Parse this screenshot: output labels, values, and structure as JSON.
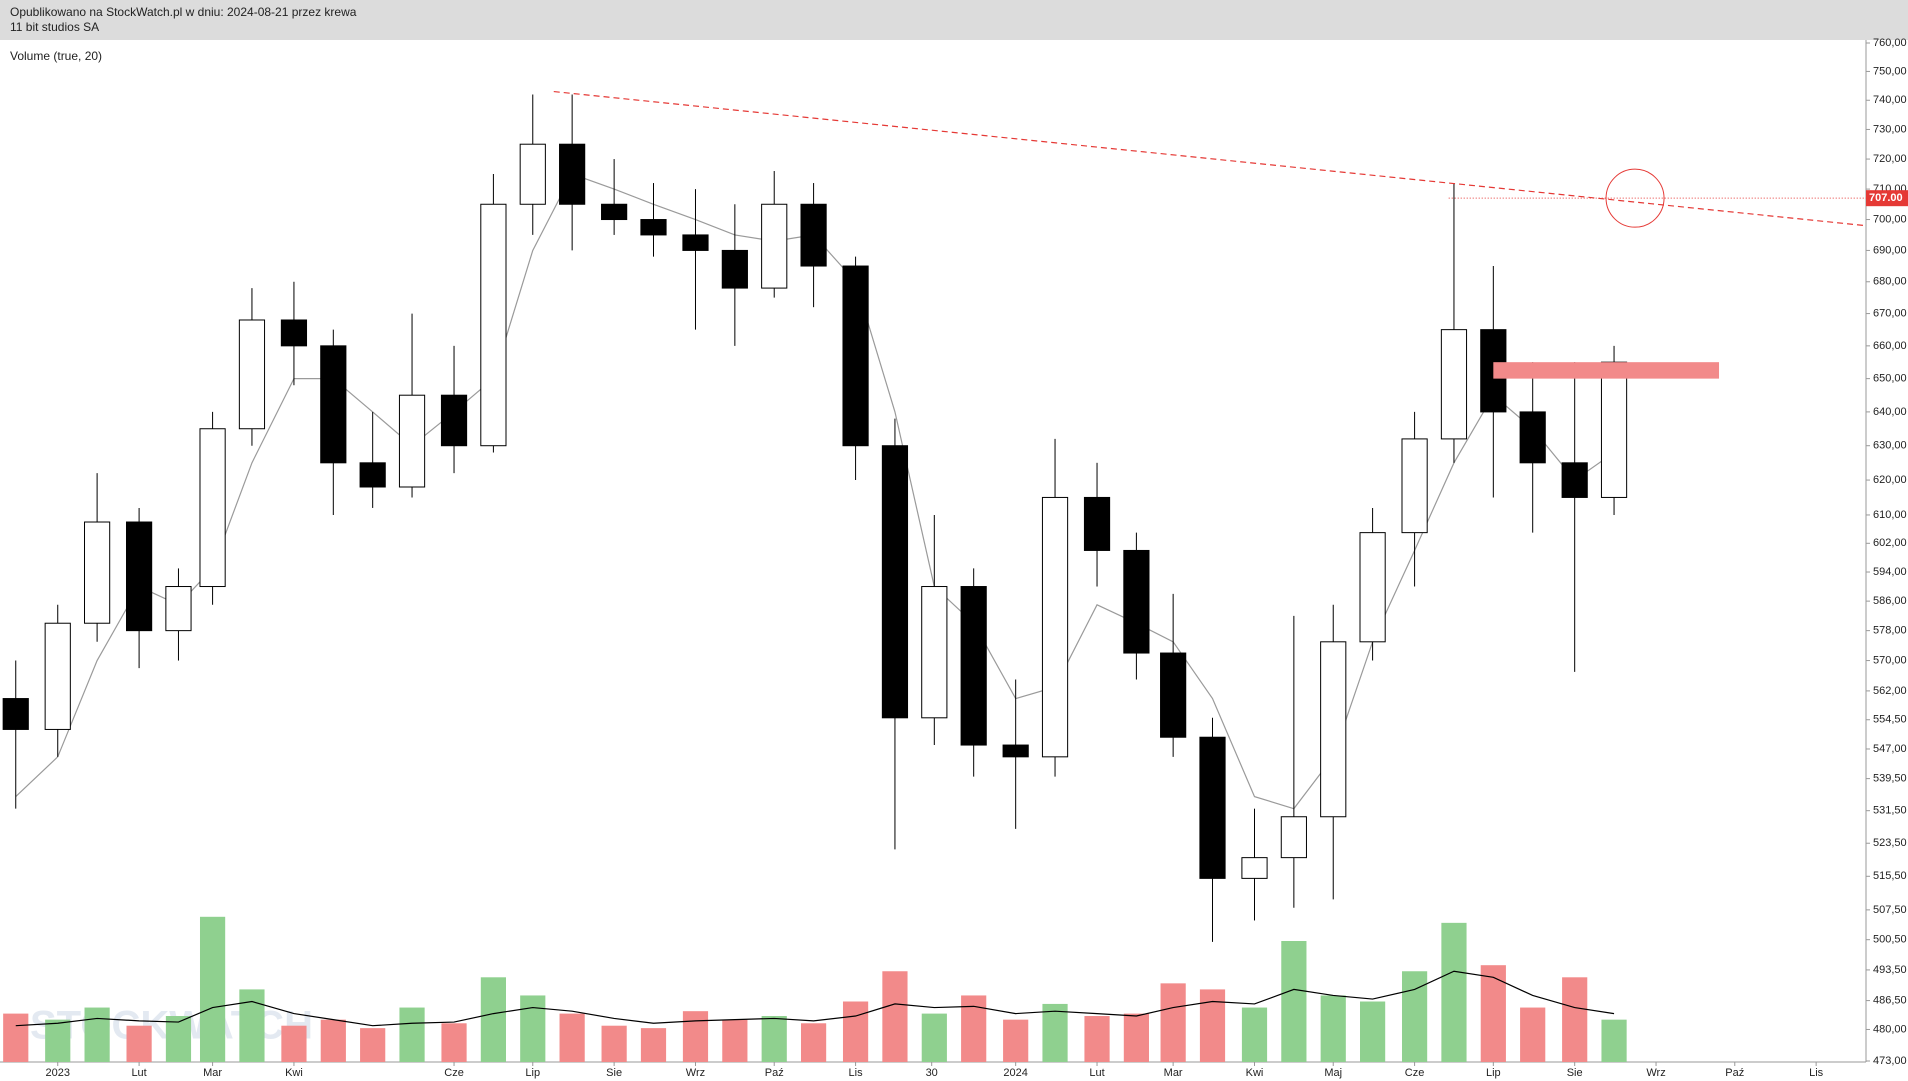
{
  "header": {
    "line1": "Opublikowano na StockWatch.pl w dniu: 2024-08-21 przez krewa",
    "line2": "11 bit studios SA"
  },
  "chart_data": {
    "type": "candlestick",
    "title": "11 bit studios SA",
    "indicator_label": "Volume (true, 20)",
    "watermark": "STOCKWATCH",
    "log_scale": true,
    "grid": false,
    "candle_color": "#000000",
    "ma_color": "#9a9a9a",
    "up_color": "#8fd08f",
    "down_color": "#f28a8a",
    "volume_ma_color": "#000000",
    "x": [
      "2022-12-16",
      "2023-01-01",
      "2023-01-16",
      "2023-02-01",
      "2023-02-16",
      "2023-03-01",
      "2023-03-16",
      "2023-04-01",
      "2023-04-16",
      "2023-05-01",
      "2023-05-16",
      "2023-06-01",
      "2023-06-16",
      "2023-07-01",
      "2023-07-16",
      "2023-08-01",
      "2023-08-16",
      "2023-09-01",
      "2023-09-16",
      "2023-10-01",
      "2023-10-16",
      "2023-11-01",
      "2023-11-16",
      "2023-12-01",
      "2023-12-16",
      "2024-01-01",
      "2024-01-16",
      "2024-02-01",
      "2024-02-16",
      "2024-03-01",
      "2024-03-16",
      "2024-04-01",
      "2024-04-16",
      "2024-05-01",
      "2024-05-16",
      "2024-06-01",
      "2024-06-16",
      "2024-07-01",
      "2024-07-16",
      "2024-08-01",
      "2024-08-16"
    ],
    "open": [
      560,
      552,
      580,
      608,
      578,
      590,
      635,
      668,
      660,
      625,
      618,
      645,
      630,
      705,
      725,
      705,
      700,
      695,
      690,
      678,
      705,
      685,
      630,
      555,
      590,
      548,
      545,
      615,
      600,
      572,
      550,
      515,
      520,
      530,
      575,
      605,
      632,
      665,
      640,
      625,
      615
    ],
    "high": [
      570,
      585,
      622,
      612,
      595,
      640,
      678,
      680,
      665,
      640,
      670,
      660,
      715,
      742,
      742,
      720,
      712,
      710,
      705,
      716,
      712,
      688,
      638,
      610,
      595,
      565,
      632,
      625,
      605,
      588,
      555,
      532,
      582,
      585,
      612,
      640,
      712,
      685,
      655,
      655,
      660
    ],
    "low": [
      532,
      545,
      575,
      568,
      570,
      585,
      630,
      648,
      610,
      612,
      615,
      622,
      628,
      695,
      690,
      695,
      688,
      665,
      660,
      675,
      672,
      620,
      522,
      548,
      540,
      527,
      540,
      590,
      565,
      545,
      500,
      505,
      508,
      510,
      570,
      590,
      625,
      615,
      605,
      567,
      610
    ],
    "close": [
      552,
      580,
      608,
      578,
      590,
      635,
      668,
      660,
      625,
      618,
      645,
      630,
      705,
      725,
      705,
      700,
      695,
      690,
      678,
      705,
      685,
      630,
      555,
      590,
      548,
      545,
      615,
      600,
      572,
      550,
      515,
      520,
      530,
      575,
      605,
      632,
      665,
      640,
      625,
      615,
      655
    ],
    "ma": [
      535,
      545,
      570,
      590,
      585,
      595,
      625,
      650,
      650,
      640,
      630,
      640,
      650,
      690,
      715,
      710,
      705,
      700,
      695,
      693,
      695,
      680,
      640,
      590,
      580,
      560,
      563,
      585,
      580,
      575,
      560,
      535,
      532,
      545,
      575,
      600,
      625,
      645,
      635,
      620,
      628
    ],
    "volume": [
      40,
      35,
      45,
      30,
      38,
      120,
      60,
      30,
      35,
      28,
      45,
      32,
      70,
      55,
      40,
      30,
      28,
      42,
      35,
      38,
      32,
      50,
      75,
      40,
      55,
      35,
      48,
      38,
      40,
      65,
      60,
      45,
      100,
      55,
      50,
      75,
      115,
      80,
      45,
      70,
      35
    ],
    "volume_ma": [
      30,
      32,
      36,
      34,
      33,
      45,
      50,
      40,
      35,
      30,
      32,
      33,
      40,
      45,
      42,
      36,
      32,
      34,
      35,
      36,
      34,
      38,
      48,
      45,
      46,
      40,
      42,
      40,
      38,
      45,
      50,
      48,
      60,
      55,
      52,
      60,
      75,
      70,
      55,
      45,
      40
    ],
    "vlim": [
      0,
      200
    ],
    "xlim": [
      "2022-12-10",
      "2024-11-20"
    ],
    "xticks": [
      {
        "value": "2023-01-01",
        "label": "2023"
      },
      {
        "value": "2023-02-01",
        "label": "Lut"
      },
      {
        "value": "2023-03-01",
        "label": "Mar"
      },
      {
        "value": "2023-04-01",
        "label": "Kwi"
      },
      {
        "value": "2023-06-01",
        "label": "Cze"
      },
      {
        "value": "2023-07-01",
        "label": "Lip"
      },
      {
        "value": "2023-08-01",
        "label": "Sie"
      },
      {
        "value": "2023-09-01",
        "label": "Wrz"
      },
      {
        "value": "2023-10-01",
        "label": "Paź"
      },
      {
        "value": "2023-11-01",
        "label": "Lis"
      },
      {
        "value": "2023-11-30",
        "label": "30"
      },
      {
        "value": "2024-01-01",
        "label": "2024"
      },
      {
        "value": "2024-02-01",
        "label": "Lut"
      },
      {
        "value": "2024-03-01",
        "label": "Mar"
      },
      {
        "value": "2024-04-01",
        "label": "Kwi"
      },
      {
        "value": "2024-05-01",
        "label": "Maj"
      },
      {
        "value": "2024-06-01",
        "label": "Cze"
      },
      {
        "value": "2024-07-01",
        "label": "Lip"
      },
      {
        "value": "2024-08-01",
        "label": "Sie"
      },
      {
        "value": "2024-09-01",
        "label": "Wrz"
      },
      {
        "value": "2024-10-01",
        "label": "Paź"
      },
      {
        "value": "2024-11-01",
        "label": "Lis"
      }
    ],
    "ylim": [
      473,
      760
    ],
    "yticks": [
      {
        "value": 473,
        "label": "473,00"
      },
      {
        "value": 480,
        "label": "480,00"
      },
      {
        "value": 486.5,
        "label": "486,50"
      },
      {
        "value": 493.5,
        "label": "493,50"
      },
      {
        "value": 500.5,
        "label": "500,50"
      },
      {
        "value": 507.5,
        "label": "507,50"
      },
      {
        "value": 515.5,
        "label": "515,50"
      },
      {
        "value": 523.5,
        "label": "523,50"
      },
      {
        "value": 531.5,
        "label": "531,50"
      },
      {
        "value": 539.5,
        "label": "539,50"
      },
      {
        "value": 547,
        "label": "547,00"
      },
      {
        "value": 554.5,
        "label": "554,50"
      },
      {
        "value": 562,
        "label": "562,00"
      },
      {
        "value": 570,
        "label": "570,00"
      },
      {
        "value": 578,
        "label": "578,00"
      },
      {
        "value": 586,
        "label": "586,00"
      },
      {
        "value": 594,
        "label": "594,00"
      },
      {
        "value": 602,
        "label": "602,00"
      },
      {
        "value": 610,
        "label": "610,00"
      },
      {
        "value": 620,
        "label": "620,00"
      },
      {
        "value": 630,
        "label": "630,00"
      },
      {
        "value": 640,
        "label": "640,00"
      },
      {
        "value": 650,
        "label": "650,00"
      },
      {
        "value": 660,
        "label": "660,00"
      },
      {
        "value": 670,
        "label": "670,00"
      },
      {
        "value": 680,
        "label": "680,00"
      },
      {
        "value": 690,
        "label": "690,00"
      },
      {
        "value": 700,
        "label": "700,00"
      },
      {
        "value": 710,
        "label": "710,00"
      },
      {
        "value": 720,
        "label": "720,00"
      },
      {
        "value": 730,
        "label": "730,00"
      },
      {
        "value": 740,
        "label": "740,00"
      },
      {
        "value": 750,
        "label": "750,00"
      },
      {
        "value": 760,
        "label": "760,00"
      }
    ],
    "trendline": {
      "x": [
        "2023-07-09",
        "2024-11-20"
      ],
      "y": [
        743,
        698
      ],
      "color": "#e53935"
    },
    "level": {
      "value": 707,
      "label": "707.00",
      "start": "2024-06-14",
      "color": "#e53935"
    },
    "zone": {
      "x": [
        "2024-07-01",
        "2024-09-25"
      ],
      "y": [
        650,
        655
      ],
      "color": "#f28a8a"
    },
    "circle": {
      "x": "2024-08-24",
      "y": 707,
      "color": "#e53935"
    }
  }
}
